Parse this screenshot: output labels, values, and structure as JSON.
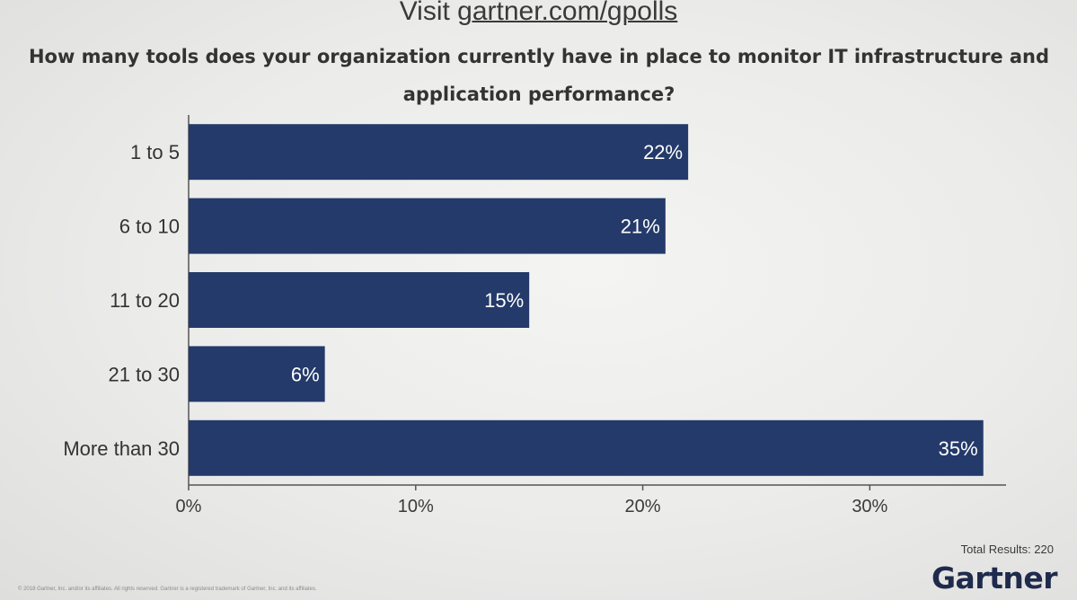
{
  "header": {
    "visit_prefix": "Visit ",
    "visit_link": "gartner.com/gpolls"
  },
  "question": "How many tools does your organization currently have in place to monitor IT infrastructure and application performance?",
  "chart_data": {
    "type": "bar",
    "orientation": "horizontal",
    "title": "How many tools does your organization currently have in place to monitor IT infrastructure and application performance?",
    "categories": [
      "1 to 5",
      "6 to 10",
      "11 to 20",
      "21 to 30",
      "More than 30"
    ],
    "values": [
      22,
      21,
      15,
      6,
      35
    ],
    "value_labels": [
      "22%",
      "21%",
      "15%",
      "6%",
      "35%"
    ],
    "unit": "%",
    "xlim": [
      0,
      36
    ],
    "xticks": [
      0,
      10,
      20,
      30
    ],
    "xtick_labels": [
      "0%",
      "10%",
      "20%",
      "30%"
    ],
    "xlabel": "",
    "ylabel": "",
    "grid": false,
    "bar_color": "#233a6a",
    "label_color": "#ffffff"
  },
  "total_results": "Total Results: 220",
  "brand": "Gartner",
  "footer": "© 2018 Gartner, Inc. and/or its affiliates. All rights reserved. Gartner is a registered trademark of Gartner, Inc. and its affiliates."
}
